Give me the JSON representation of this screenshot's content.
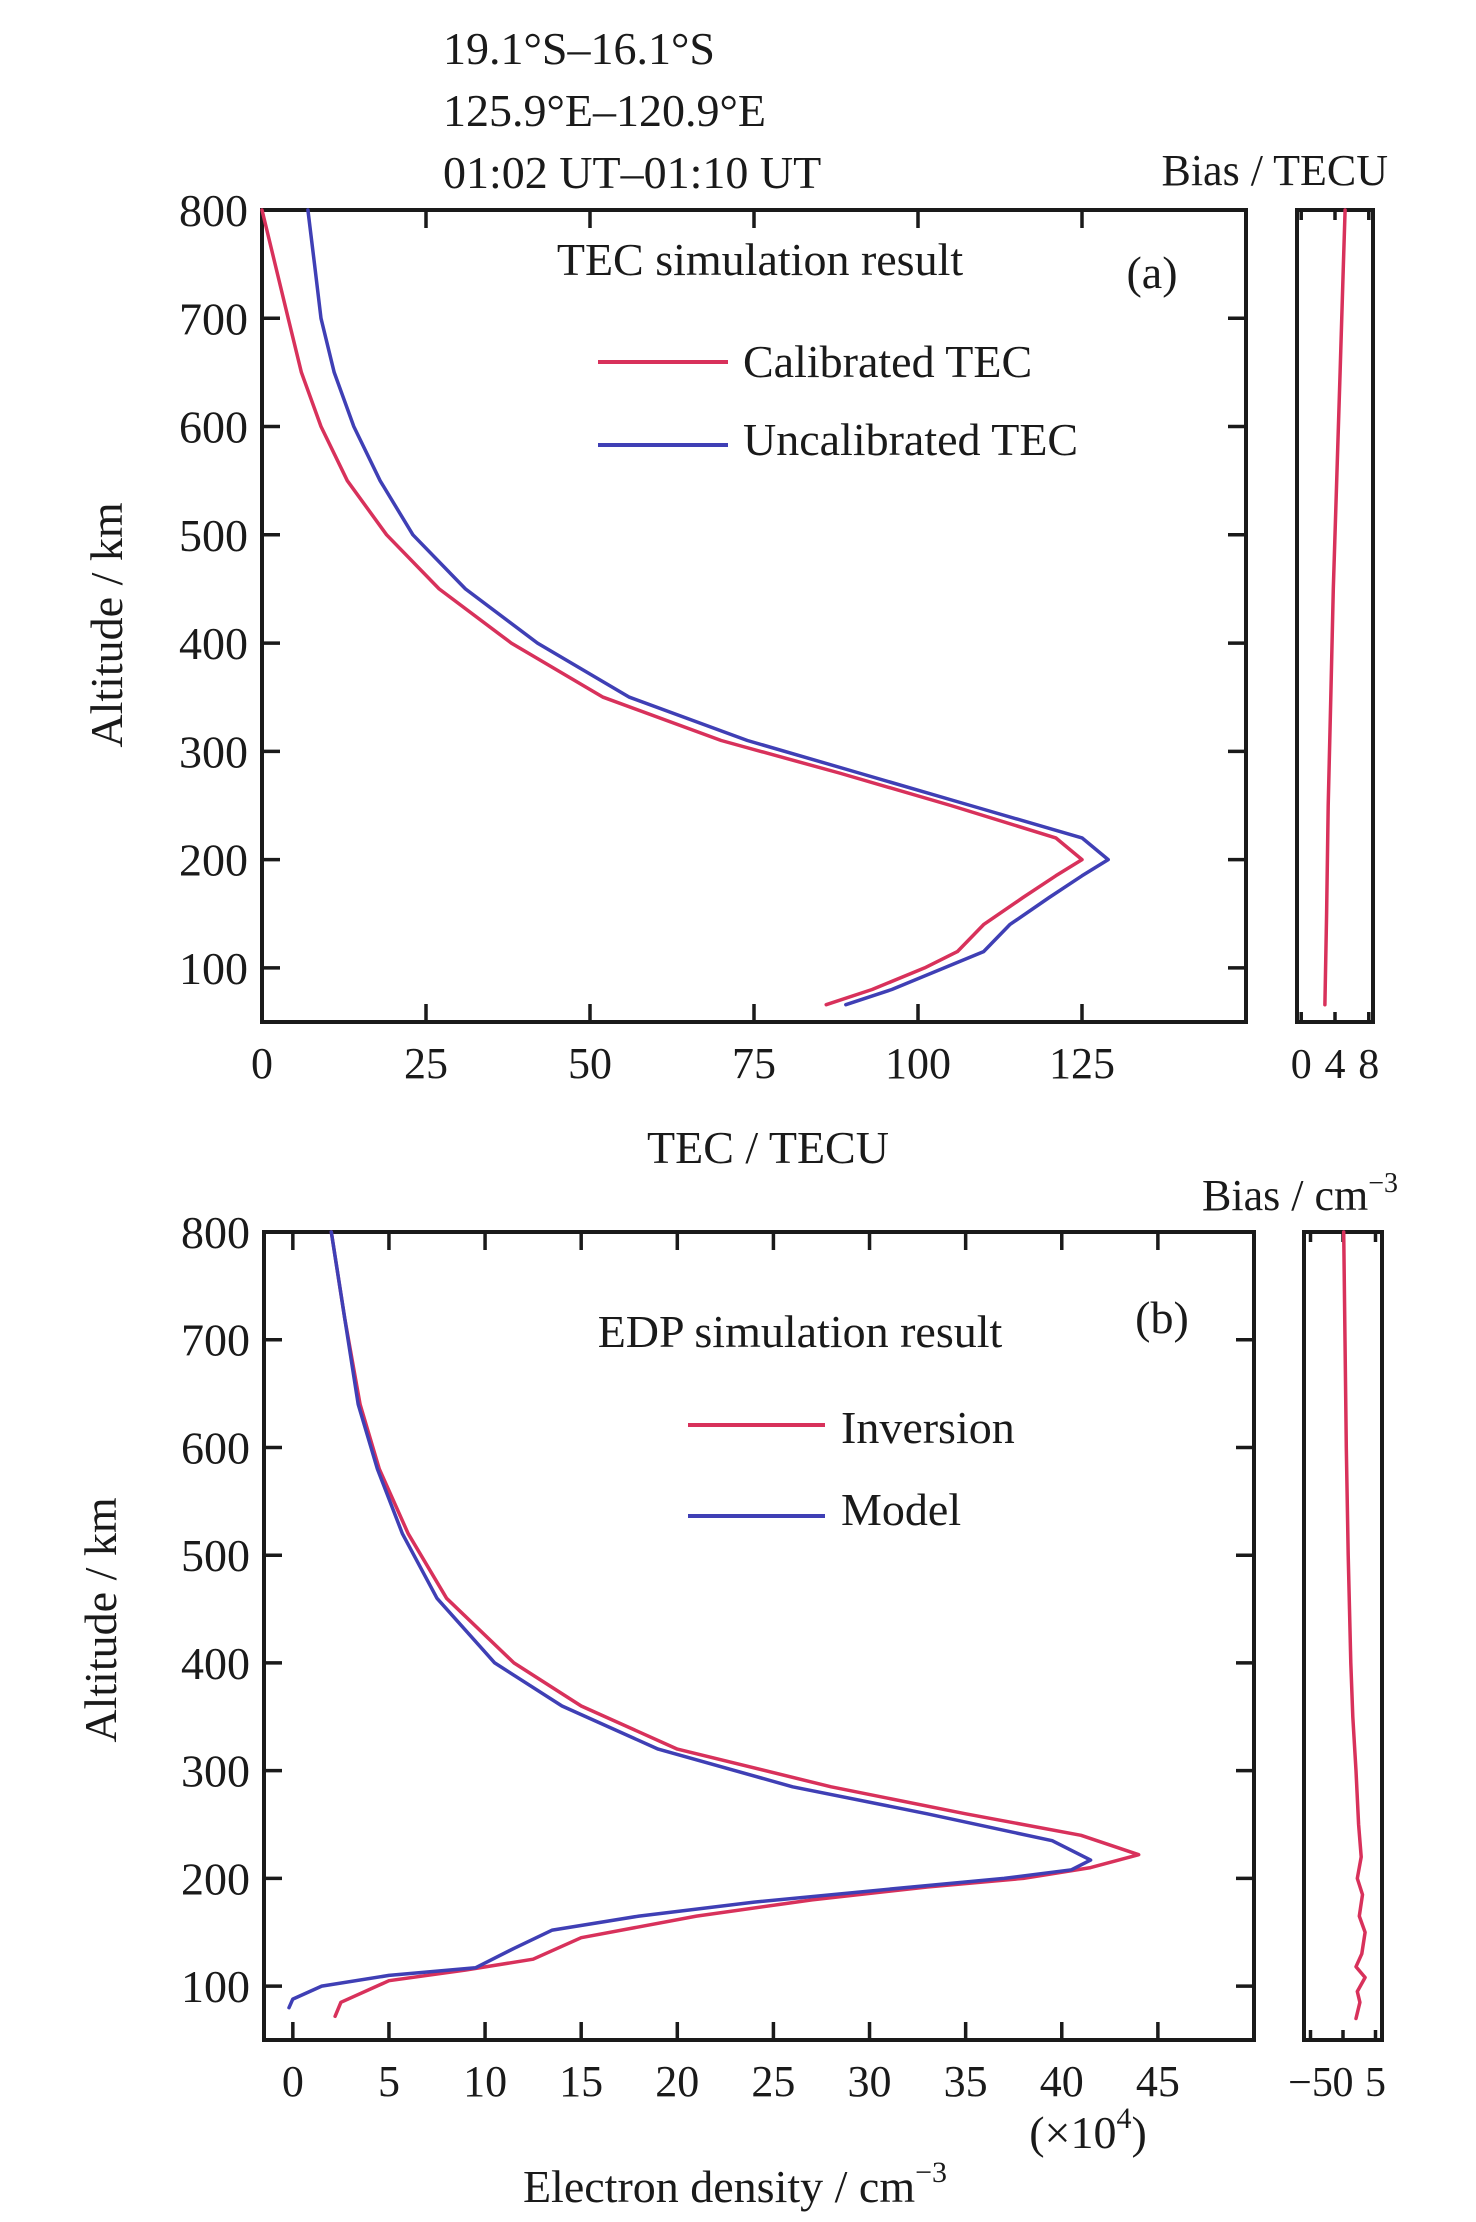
{
  "colors": {
    "red": "#d8315b",
    "blue": "#3f3fb5",
    "axis": "#1a1a1a"
  },
  "header": {
    "lat_range": "19.1°S–16.1°S",
    "lon_range": "125.9°E–120.9°E",
    "time_range": "01:02 UT–01:10 UT"
  },
  "chart_data": [
    {
      "id": "a",
      "type": "line",
      "panel_label": "(a)",
      "title": "TEC simulation result",
      "xlabel": "TEC / TECU",
      "ylabel": "Altitude / km",
      "xlim": [
        0,
        150
      ],
      "ylim": [
        50,
        800
      ],
      "x_ticks": [
        0,
        25,
        50,
        75,
        100,
        125
      ],
      "x_tick_labels": [
        "0",
        "25",
        "50",
        "75",
        "100",
        "125"
      ],
      "y_ticks": [
        100,
        200,
        300,
        400,
        500,
        600,
        700,
        800
      ],
      "y_tick_labels": [
        "100",
        "200",
        "300",
        "400",
        "500",
        "600",
        "700",
        "800"
      ],
      "legend_position": "top-right",
      "series": [
        {
          "name": "Calibrated TEC",
          "color": "#d8315b",
          "points": [
            [
              86,
              66
            ],
            [
              93,
              80
            ],
            [
              101,
              100
            ],
            [
              106,
              115
            ],
            [
              110,
              140
            ],
            [
              116,
              165
            ],
            [
              121,
              185
            ],
            [
              125,
              200
            ],
            [
              121,
              220
            ],
            [
              105,
              250
            ],
            [
              88,
              280
            ],
            [
              70,
              310
            ],
            [
              52,
              350
            ],
            [
              38,
              400
            ],
            [
              27,
              450
            ],
            [
              19,
              500
            ],
            [
              13,
              550
            ],
            [
              9,
              600
            ],
            [
              6,
              650
            ],
            [
              4,
              700
            ],
            [
              2,
              750
            ],
            [
              0,
              800
            ]
          ]
        },
        {
          "name": "Uncalibrated TEC",
          "color": "#3f3fb5",
          "points": [
            [
              89,
              66
            ],
            [
              96,
              80
            ],
            [
              104,
              100
            ],
            [
              110,
              115
            ],
            [
              114,
              140
            ],
            [
              120,
              165
            ],
            [
              125,
              185
            ],
            [
              129,
              200
            ],
            [
              125,
              220
            ],
            [
              108,
              250
            ],
            [
              91,
              280
            ],
            [
              74,
              310
            ],
            [
              56,
              350
            ],
            [
              42,
              400
            ],
            [
              31,
              450
            ],
            [
              23,
              500
            ],
            [
              18,
              550
            ],
            [
              14,
              600
            ],
            [
              11,
              650
            ],
            [
              9,
              700
            ],
            [
              8,
              750
            ],
            [
              7,
              800
            ]
          ]
        }
      ]
    },
    {
      "id": "a_bias",
      "type": "line",
      "title": "Bias / TECU",
      "xlim": [
        -0.5,
        8.5
      ],
      "ylim": [
        50,
        800
      ],
      "x_ticks": [
        0,
        4,
        8
      ],
      "x_tick_labels": [
        "0",
        "4",
        "8"
      ],
      "series": [
        {
          "color": "#d8315b",
          "points": [
            [
              2.8,
              66
            ],
            [
              3.0,
              150
            ],
            [
              3.2,
              250
            ],
            [
              3.5,
              350
            ],
            [
              3.8,
              450
            ],
            [
              4.2,
              550
            ],
            [
              4.6,
              650
            ],
            [
              5.0,
              750
            ],
            [
              5.2,
              800
            ]
          ]
        }
      ]
    },
    {
      "id": "b",
      "type": "line",
      "panel_label": "(b)",
      "title": "EDP simulation result",
      "xlabel": "Electron density / cm",
      "xlabel_sup": "−3",
      "ylabel": "Altitude / km",
      "x_scale_note": "(×10",
      "x_scale_sup": "4",
      "x_scale_close": ")",
      "xlim": [
        -1.5,
        50
      ],
      "ylim": [
        50,
        800
      ],
      "x_ticks": [
        0,
        5,
        10,
        15,
        20,
        25,
        30,
        35,
        40,
        45
      ],
      "x_tick_labels": [
        "0",
        "5",
        "10",
        "15",
        "20",
        "25",
        "30",
        "35",
        "40",
        "45"
      ],
      "y_ticks": [
        100,
        200,
        300,
        400,
        500,
        600,
        700,
        800
      ],
      "y_tick_labels": [
        "100",
        "200",
        "300",
        "400",
        "500",
        "600",
        "700",
        "800"
      ],
      "legend_position": "top-right",
      "series": [
        {
          "name": "Inversion",
          "color": "#d8315b",
          "points": [
            [
              2.2,
              72
            ],
            [
              2.5,
              85
            ],
            [
              5,
              105
            ],
            [
              9,
              115
            ],
            [
              12.5,
              125
            ],
            [
              15,
              145
            ],
            [
              21,
              165
            ],
            [
              27,
              180
            ],
            [
              33,
              192
            ],
            [
              38,
              200
            ],
            [
              41.5,
              210
            ],
            [
              44,
              222
            ],
            [
              41,
              240
            ],
            [
              35,
              260
            ],
            [
              28,
              285
            ],
            [
              20,
              320
            ],
            [
              15,
              360
            ],
            [
              11.5,
              400
            ],
            [
              8,
              460
            ],
            [
              6,
              520
            ],
            [
              4.5,
              580
            ],
            [
              3.5,
              640
            ],
            [
              2.7,
              720
            ],
            [
              2,
              800
            ]
          ]
        },
        {
          "name": "Model",
          "color": "#3f3fb5",
          "points": [
            [
              -0.2,
              80
            ],
            [
              0,
              88
            ],
            [
              1.5,
              100
            ],
            [
              5,
              110
            ],
            [
              9.5,
              117
            ],
            [
              11.5,
              135
            ],
            [
              13.5,
              152
            ],
            [
              18,
              165
            ],
            [
              24,
              178
            ],
            [
              31,
              190
            ],
            [
              37,
              200
            ],
            [
              40.5,
              208
            ],
            [
              41.5,
              217
            ],
            [
              39.5,
              235
            ],
            [
              33,
              260
            ],
            [
              26,
              285
            ],
            [
              19,
              320
            ],
            [
              14,
              360
            ],
            [
              10.5,
              400
            ],
            [
              7.5,
              460
            ],
            [
              5.7,
              520
            ],
            [
              4.4,
              580
            ],
            [
              3.4,
              640
            ],
            [
              2.7,
              720
            ],
            [
              2,
              800
            ]
          ]
        }
      ]
    },
    {
      "id": "b_bias",
      "type": "line",
      "title": "Bias / cm",
      "title_sup": "−3",
      "xlim": [
        -6,
        6
      ],
      "ylim": [
        50,
        800
      ],
      "x_ticks": [
        -5,
        0,
        5
      ],
      "x_tick_labels": [
        "−5",
        "0",
        "5"
      ],
      "series": [
        {
          "color": "#d8315b",
          "points": [
            [
              2.0,
              70
            ],
            [
              2.6,
              85
            ],
            [
              2.2,
              95
            ],
            [
              3.4,
              108
            ],
            [
              2.0,
              118
            ],
            [
              2.9,
              130
            ],
            [
              3.4,
              150
            ],
            [
              2.5,
              165
            ],
            [
              3.0,
              185
            ],
            [
              2.2,
              200
            ],
            [
              2.8,
              220
            ],
            [
              2.4,
              250
            ],
            [
              2.0,
              300
            ],
            [
              1.5,
              350
            ],
            [
              1.2,
              400
            ],
            [
              1.0,
              450
            ],
            [
              0.8,
              500
            ],
            [
              0.5,
              600
            ],
            [
              0.3,
              700
            ],
            [
              0.1,
              800
            ]
          ]
        }
      ]
    }
  ]
}
